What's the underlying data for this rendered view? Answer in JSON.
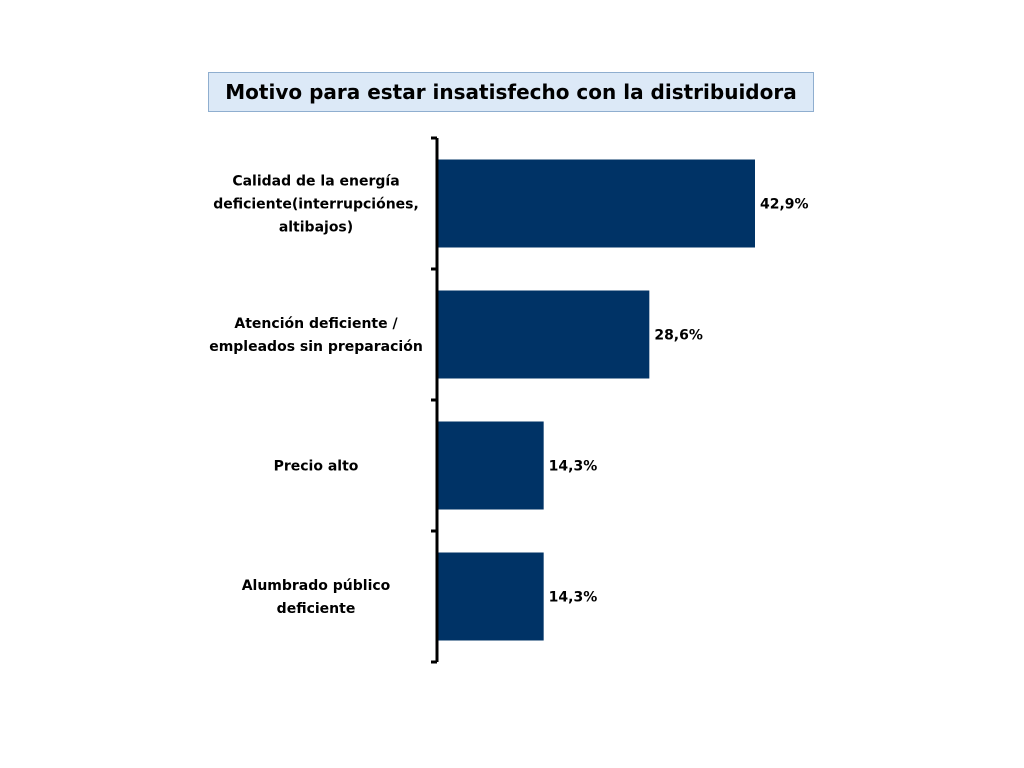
{
  "chart_data": {
    "type": "bar",
    "orientation": "horizontal",
    "title": "Motivo para estar insatisfecho con la distribuidora",
    "categories": [
      [
        "Calidad de la energía",
        "deficiente(interrupciónes,",
        "altibajos)"
      ],
      [
        "Atención deficiente /",
        "empleados sin preparación"
      ],
      [
        "Precio alto"
      ],
      [
        "Alumbrado público",
        "deficiente"
      ]
    ],
    "values": [
      42.9,
      28.6,
      14.3,
      14.3
    ],
    "value_labels": [
      "42,9%",
      "28,6%",
      "14,3%",
      "14,3%"
    ],
    "xlim": [
      0,
      45
    ],
    "bar_color": "#003366",
    "axis_color": "#000000",
    "grid": false,
    "legend": "none"
  }
}
